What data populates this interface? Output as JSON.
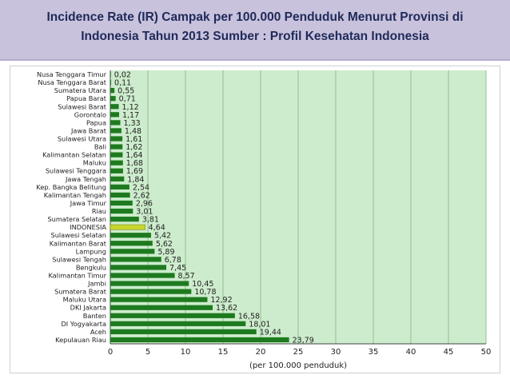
{
  "header": {
    "title_line1": "Incidence Rate (IR) Campak per 100.000 Penduduk Menurut Provinsi di",
    "title_line2": "Indonesia Tahun 2013 Sumber : Profil Kesehatan Indonesia"
  },
  "chart_data": {
    "type": "bar",
    "orientation": "horizontal",
    "title": "Incidence Rate (IR) Campak per 100.000 Penduduk Menurut Provinsi di Indonesia Tahun 2013 Sumber : Profil Kesehatan Indonesia",
    "xlabel": "(per 100.000 penduduk)",
    "ylabel": "",
    "xlim": [
      0,
      50
    ],
    "xticks": [
      0,
      5,
      10,
      15,
      20,
      25,
      30,
      35,
      40,
      45,
      50
    ],
    "grid": true,
    "categories": [
      "Nusa Tenggara Timur",
      "Nusa Tenggara Barat",
      "Sumatera Utara",
      "Papua Barat",
      "Sulawesi Barat",
      "Gorontalo",
      "Papua",
      "Jawa Barat",
      "Sulawesi Utara",
      "Bali",
      "Kalimantan Selatan",
      "Maluku",
      "Sulawesi Tenggara",
      "Jawa Tengah",
      "Kep. Bangka Belitung",
      "Kalimantan Tengah",
      "Jawa Timur",
      "Riau",
      "Sumatera Selatan",
      "INDONESIA",
      "Sulawesi Selatan",
      "Kalimantan Barat",
      "Lampung",
      "Sulawesi Tengah",
      "Bengkulu",
      "Kalimantan Timur",
      "Jambi",
      "Sumatera Barat",
      "Maluku Utara",
      "DKI Jakarta",
      "Banten",
      "DI Yogyakarta",
      "Aceh",
      "Kepulauan Riau"
    ],
    "values": [
      0.02,
      0.11,
      0.55,
      0.71,
      1.12,
      1.17,
      1.33,
      1.48,
      1.61,
      1.62,
      1.64,
      1.68,
      1.69,
      1.84,
      2.54,
      2.62,
      2.96,
      3.01,
      3.81,
      4.64,
      5.42,
      5.62,
      5.89,
      6.78,
      7.45,
      8.57,
      10.45,
      10.78,
      12.92,
      13.62,
      16.58,
      18.01,
      19.44,
      23.79
    ],
    "data_labels": [
      "0,02",
      "0,11",
      "0,55",
      "0,71",
      "1,12",
      "1,17",
      "1,33",
      "1,48",
      "1,61",
      "1,62",
      "1,64",
      "1,68",
      "1,69",
      "1,84",
      "2,54",
      "2,62",
      "2,96",
      "3,01",
      "3,81",
      "4,64",
      "5,42",
      "5,62",
      "5,89",
      "6,78",
      "7,45",
      "8,57",
      "10,45",
      "10,78",
      "12,92",
      "13,62",
      "16,58",
      "18,01",
      "19,44",
      "23,79"
    ],
    "highlight_category": "INDONESIA",
    "colors": {
      "bar": "#1e7a1e",
      "highlight_bar": "#c8d630",
      "plot_background": "#cdeccd",
      "grid": "#8fbf8f",
      "text": "#222222"
    }
  }
}
